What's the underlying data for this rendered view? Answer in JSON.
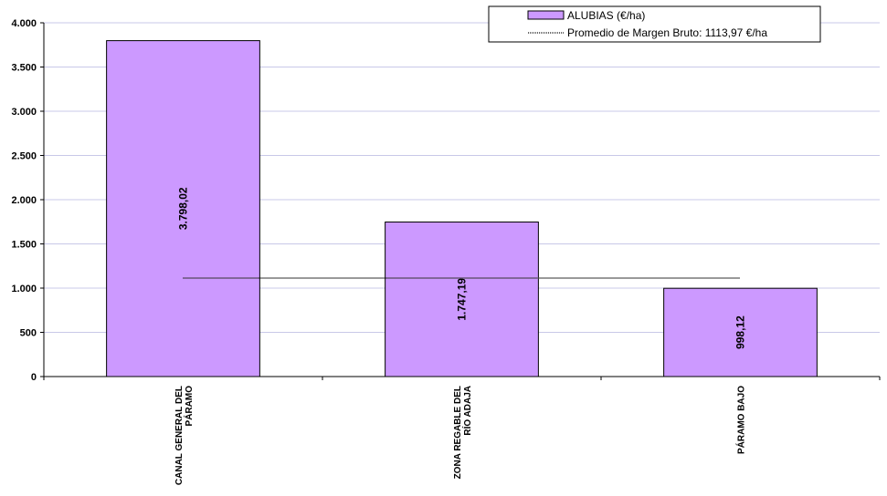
{
  "chart_data": {
    "type": "bar",
    "categories": [
      [
        "CANAL GENERAL DEL",
        "PÁRAMO"
      ],
      [
        "ZONA REGABLE DEL",
        "RÍO ADAJA"
      ],
      [
        "PÁRAMO BAJO"
      ]
    ],
    "series": [
      {
        "name": "ALUBIAS (€/ha)",
        "values": [
          3798.02,
          1747.19,
          998.12
        ],
        "labels": [
          "3.798,02",
          "1.747,19",
          "998,12"
        ],
        "color": "#cc99ff"
      }
    ],
    "average_line": {
      "name": "Promedio de Margen Bruto: 1113,97 €/ha",
      "value": 1113.97
    },
    "yticks": [
      {
        "value": 0,
        "label": "0"
      },
      {
        "value": 500,
        "label": "500"
      },
      {
        "value": 1000,
        "label": "1.000"
      },
      {
        "value": 1500,
        "label": "1.500"
      },
      {
        "value": 2000,
        "label": "2.000"
      },
      {
        "value": 2500,
        "label": "2.500"
      },
      {
        "value": 3000,
        "label": "3.000"
      },
      {
        "value": 3500,
        "label": "3.500"
      },
      {
        "value": 4000,
        "label": "4.000"
      }
    ],
    "ylim": [
      0,
      4000
    ],
    "grid": true,
    "legend_position": "top-right",
    "title": "",
    "xlabel": "",
    "ylabel": ""
  }
}
